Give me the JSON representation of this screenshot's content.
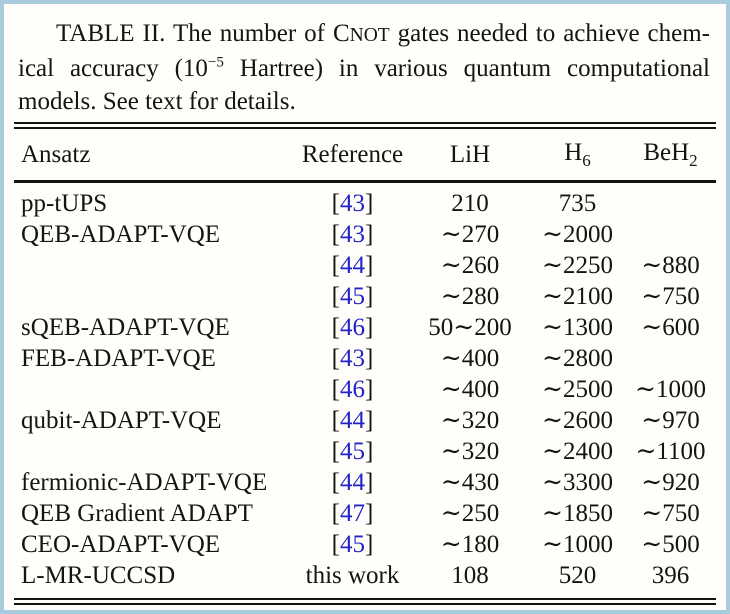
{
  "caption": {
    "lines": [
      {
        "indent": true,
        "justify": true,
        "segments": [
          {
            "text": "TABLE II.  The number of "
          },
          {
            "text": "C"
          },
          {
            "text": "NOT",
            "style": "smallcaps"
          },
          {
            "text": " gates needed to achieve chem-"
          }
        ]
      },
      {
        "justify": true,
        "segments": [
          {
            "text": "ical accuracy (10"
          },
          {
            "text": "−5",
            "style": "sup"
          },
          {
            "text": " Hartree) in various quantum computational"
          }
        ]
      },
      {
        "segments": [
          {
            "text": "models. See text for details."
          }
        ]
      }
    ]
  },
  "table": {
    "columns": [
      {
        "key": "ansatz",
        "label": "Ansatz",
        "align": "left"
      },
      {
        "key": "reference",
        "label": "Reference",
        "align": "center"
      },
      {
        "key": "lih",
        "label": "LiH",
        "align": "center"
      },
      {
        "key": "h6",
        "label": "H",
        "sub": "6",
        "align": "center"
      },
      {
        "key": "beh2",
        "label": "BeH",
        "sub": "2",
        "align": "center"
      }
    ],
    "rows": [
      {
        "ansatz": "pp-tUPS",
        "ref": "43",
        "ref_kind": "cite",
        "lih": "210",
        "h6": "735",
        "beh2": ""
      },
      {
        "ansatz": "QEB-ADAPT-VQE",
        "ref": "43",
        "ref_kind": "cite",
        "lih": "∼270",
        "h6": "∼2000",
        "beh2": ""
      },
      {
        "ansatz": "",
        "ref": "44",
        "ref_kind": "cite",
        "lih": "∼260",
        "h6": "∼2250",
        "beh2": "∼880"
      },
      {
        "ansatz": "",
        "ref": "45",
        "ref_kind": "cite",
        "lih": "∼280",
        "h6": "∼2100",
        "beh2": "∼750"
      },
      {
        "ansatz": "sQEB-ADAPT-VQE",
        "ref": "46",
        "ref_kind": "cite",
        "lih": "50∼200",
        "h6": "∼1300",
        "beh2": "∼600"
      },
      {
        "ansatz": "FEB-ADAPT-VQE",
        "ref": "43",
        "ref_kind": "cite",
        "lih": "∼400",
        "h6": "∼2800",
        "beh2": ""
      },
      {
        "ansatz": "",
        "ref": "46",
        "ref_kind": "cite",
        "lih": "∼400",
        "h6": "∼2500",
        "beh2": "∼1000"
      },
      {
        "ansatz": "qubit-ADAPT-VQE",
        "ref": "44",
        "ref_kind": "cite",
        "lih": "∼320",
        "h6": "∼2600",
        "beh2": "∼970"
      },
      {
        "ansatz": "",
        "ref": "45",
        "ref_kind": "cite",
        "lih": "∼320",
        "h6": "∼2400",
        "beh2": "∼1100"
      },
      {
        "ansatz": "fermionic-ADAPT-VQE",
        "ref": "44",
        "ref_kind": "cite",
        "lih": "∼430",
        "h6": "∼3300",
        "beh2": "∼920"
      },
      {
        "ansatz": "QEB Gradient ADAPT",
        "ref": "47",
        "ref_kind": "cite",
        "lih": "∼250",
        "h6": "∼1850",
        "beh2": "∼750"
      },
      {
        "ansatz": "CEO-ADAPT-VQE",
        "ref": "45",
        "ref_kind": "cite",
        "lih": "∼180",
        "h6": "∼1000",
        "beh2": "∼500"
      },
      {
        "ansatz": "L-MR-UCCSD",
        "ref": "this work",
        "ref_kind": "text",
        "lih": "108",
        "h6": "520",
        "beh2": "396"
      }
    ]
  },
  "colors": {
    "citation_blue": "#2323c8",
    "rule_black": "#141414",
    "frame_blue": "#a8cbdd",
    "background": "#fffefa"
  }
}
